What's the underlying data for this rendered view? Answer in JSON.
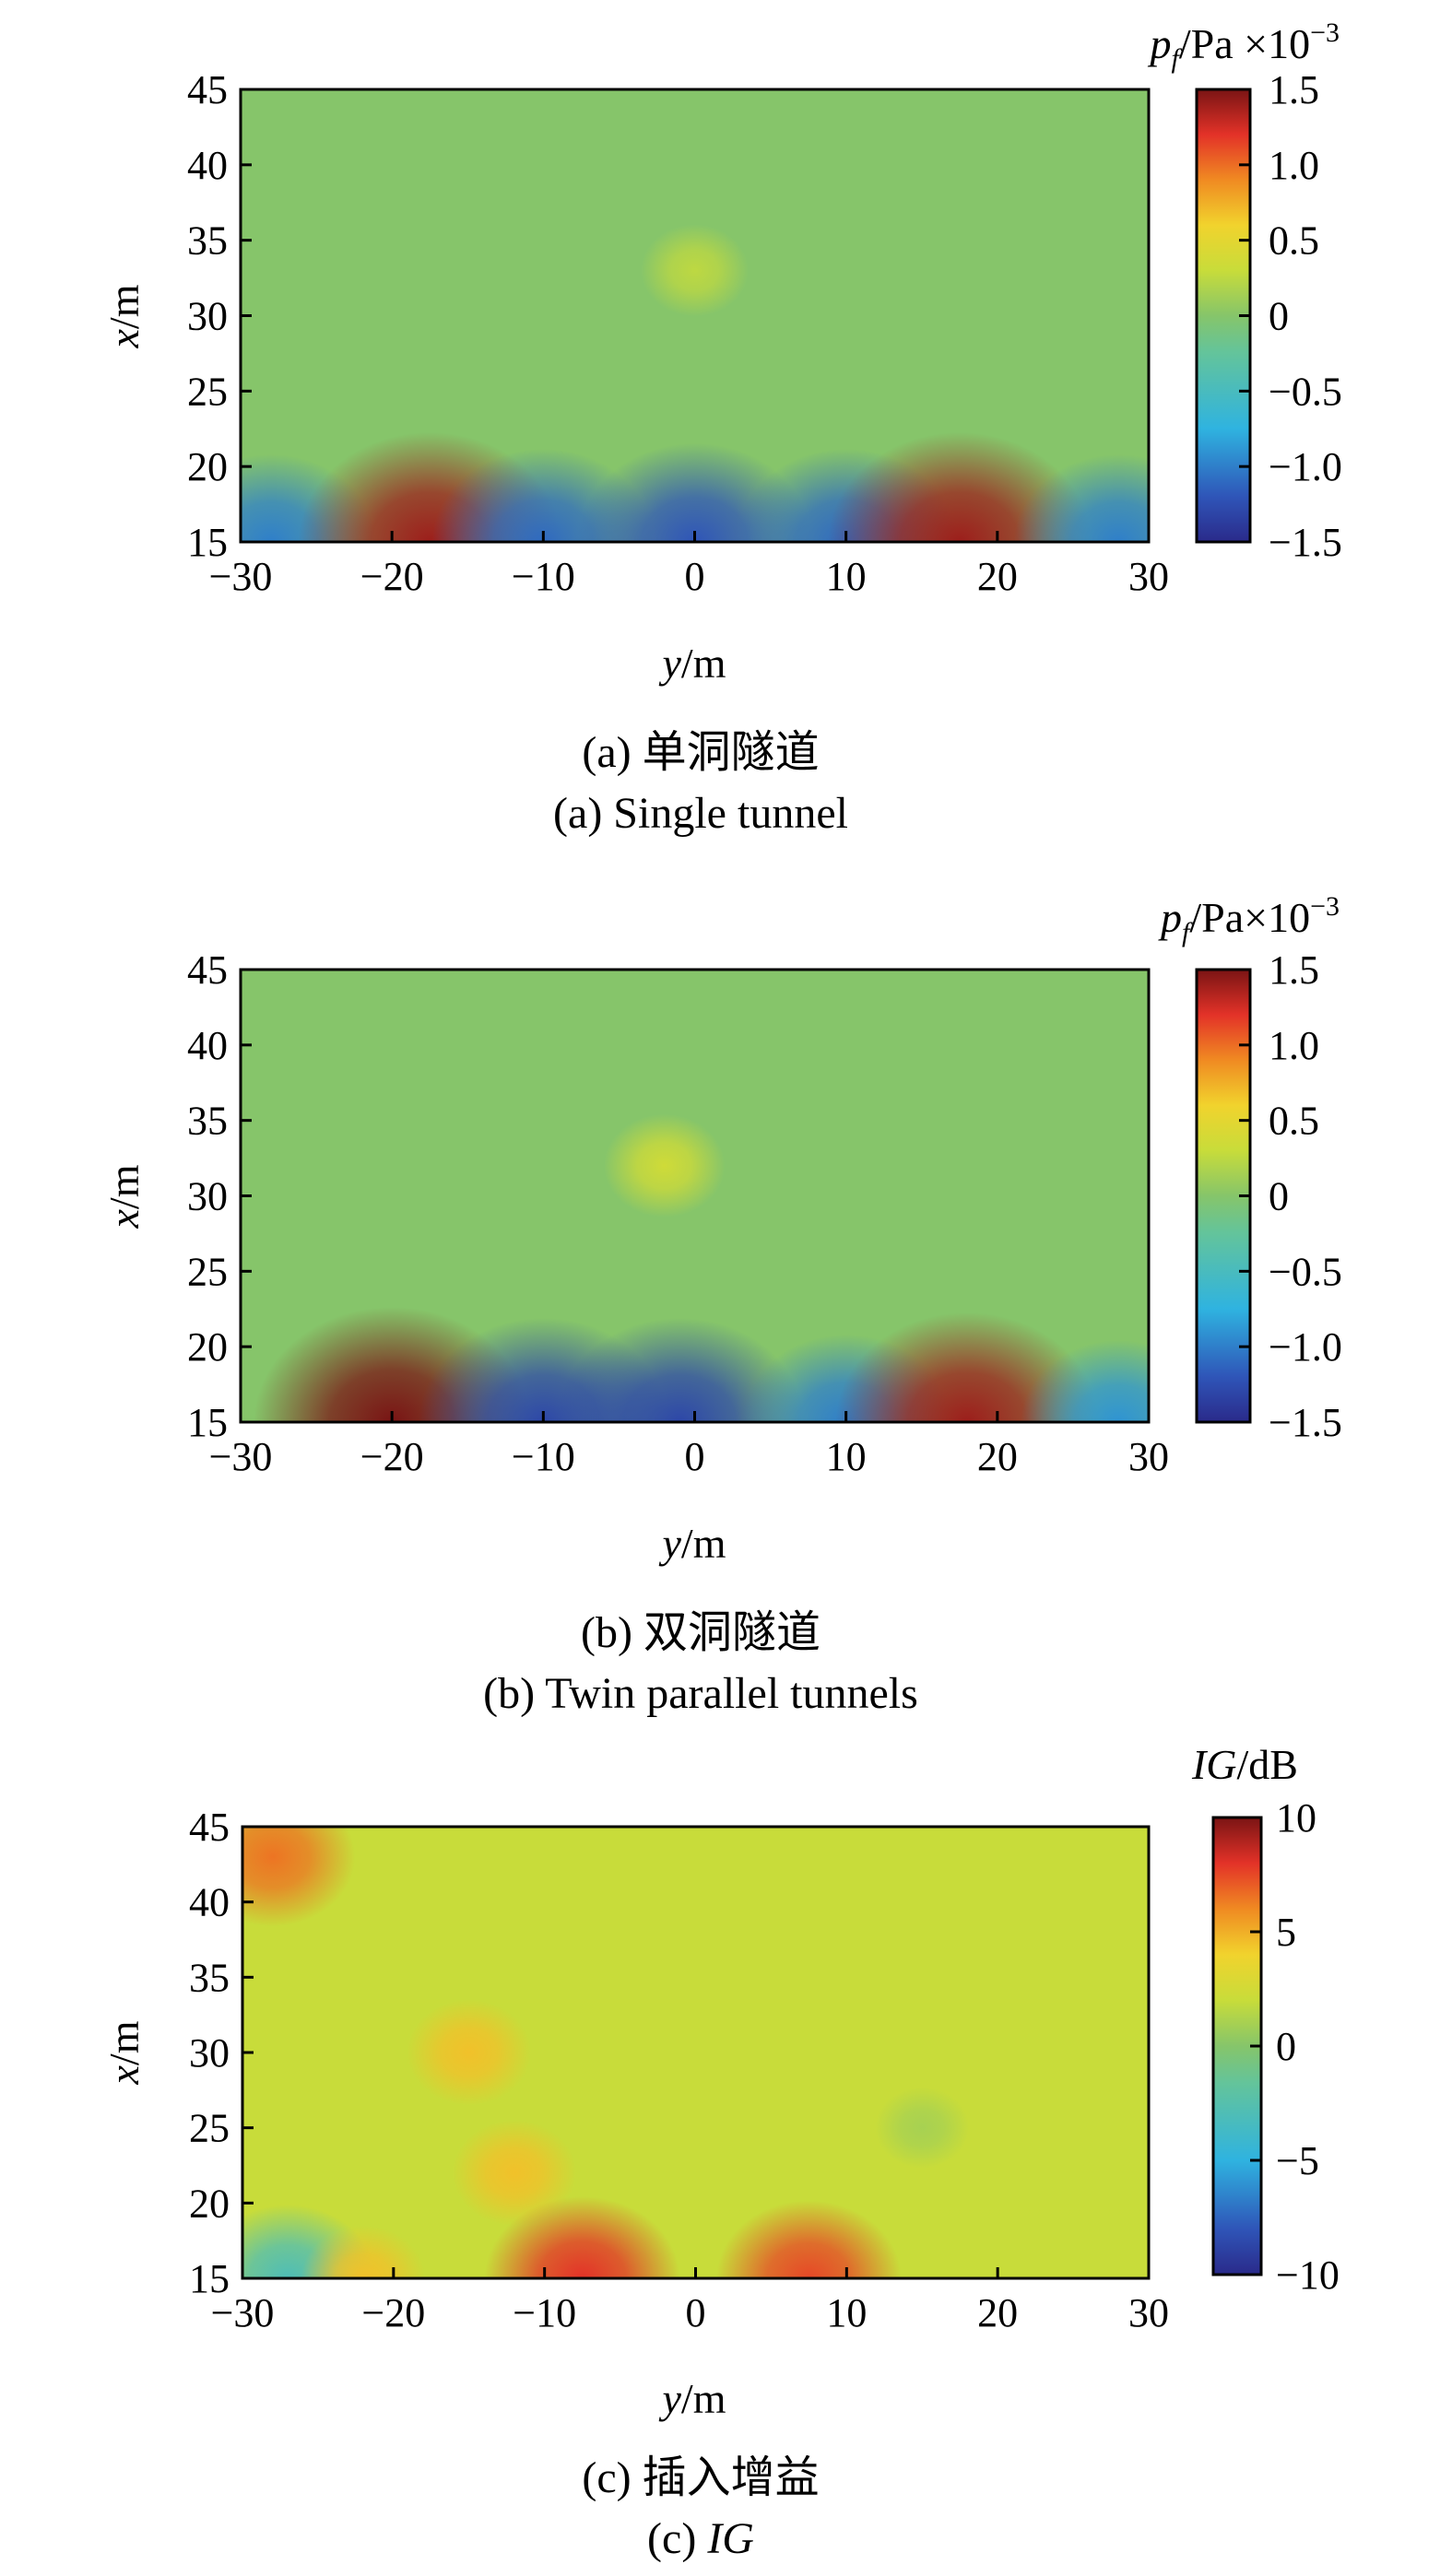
{
  "chart_data": [
    {
      "type": "heatmap",
      "caption_cn": "(a) 单洞隧道",
      "caption_en": "(a) Single tunnel",
      "xlabel_var": "y",
      "xlabel_unit": "/m",
      "ylabel_var": "x",
      "ylabel_unit": "/m",
      "xlim": [
        -30,
        30
      ],
      "ylim": [
        15,
        45
      ],
      "xticks": [
        "−30",
        "−20",
        "−10",
        "0",
        "10",
        "20",
        "30"
      ],
      "yticks": [
        "15",
        "20",
        "25",
        "30",
        "35",
        "40",
        "45"
      ],
      "colorbar": {
        "title_var": "p",
        "title_sub": "f",
        "title_unit": "/Pa ×10",
        "title_exp": "−3",
        "range": [
          -1.5,
          1.5
        ],
        "ticks": [
          "1.5",
          "1.0",
          "0.5",
          "0",
          "−0.5",
          "−1.0",
          "−1.5"
        ]
      },
      "background": 0.0,
      "features": [
        {
          "y": -28,
          "x": 15,
          "value": -1.0
        },
        {
          "y": -17.5,
          "x": 15,
          "value": 1.4
        },
        {
          "y": -10,
          "x": 15,
          "value": -1.1
        },
        {
          "y": 0,
          "x": 15,
          "value": -1.2
        },
        {
          "y": 10,
          "x": 15,
          "value": -1.1
        },
        {
          "y": 17.5,
          "x": 15,
          "value": 1.4
        },
        {
          "y": 28,
          "x": 15,
          "value": -1.0
        },
        {
          "y": 0,
          "x": 33,
          "value": 0.25
        }
      ]
    },
    {
      "type": "heatmap",
      "caption_cn": "(b) 双洞隧道",
      "caption_en": "(b) Twin parallel tunnels",
      "xlabel_var": "y",
      "xlabel_unit": "/m",
      "ylabel_var": "x",
      "ylabel_unit": "/m",
      "xlim": [
        -30,
        30
      ],
      "ylim": [
        15,
        45
      ],
      "xticks": [
        "−30",
        "−20",
        "−10",
        "0",
        "10",
        "20",
        "30"
      ],
      "yticks": [
        "15",
        "20",
        "25",
        "30",
        "35",
        "40",
        "45"
      ],
      "colorbar": {
        "title_var": "p",
        "title_sub": "f",
        "title_unit": "/Pa×10",
        "title_exp": "−3",
        "range": [
          -1.5,
          1.5
        ],
        "ticks": [
          "1.5",
          "1.0",
          "0.5",
          "0",
          "−0.5",
          "−1.0",
          "−1.5"
        ]
      },
      "background": 0.0,
      "features": [
        {
          "y": -20,
          "x": 15,
          "value": 1.5
        },
        {
          "y": -10,
          "x": 15,
          "value": -1.3
        },
        {
          "y": -1,
          "x": 15,
          "value": -1.3
        },
        {
          "y": 10,
          "x": 15,
          "value": -1.0
        },
        {
          "y": 18,
          "x": 15,
          "value": 1.4
        },
        {
          "y": 28,
          "x": 15,
          "value": -0.9
        },
        {
          "y": -2,
          "x": 32,
          "value": 0.35
        }
      ]
    },
    {
      "type": "heatmap",
      "caption_cn": "(c) 插入增益",
      "caption_en_prefix": "(c) ",
      "caption_en_var": "IG",
      "xlabel_var": "y",
      "xlabel_unit": "/m",
      "ylabel_var": "x",
      "ylabel_unit": "/m",
      "xlim": [
        -30,
        30
      ],
      "ylim": [
        15,
        45
      ],
      "xticks": [
        "−30",
        "−20",
        "−10",
        "0",
        "10",
        "20",
        "30"
      ],
      "yticks": [
        "15",
        "20",
        "25",
        "30",
        "35",
        "40",
        "45"
      ],
      "colorbar": {
        "title_var": "IG",
        "title_unit": "/dB",
        "range": [
          -10,
          10
        ],
        "ticks": [
          "10",
          "5",
          "0",
          "−5",
          "−10"
        ]
      },
      "background": 2.0,
      "features": [
        {
          "y": -28,
          "x": 43,
          "value": 6.5
        },
        {
          "y": -15,
          "x": 30,
          "value": 4.5
        },
        {
          "y": -12,
          "x": 22,
          "value": 4.5
        },
        {
          "y": 15,
          "x": 25,
          "value": 1.0
        },
        {
          "y": -7.5,
          "x": 15,
          "value": 8.0
        },
        {
          "y": 7.5,
          "x": 15,
          "value": 7.5
        },
        {
          "y": -27,
          "x": 15,
          "value": -3.0
        },
        {
          "y": -22,
          "x": 15,
          "value": 4.5
        }
      ]
    }
  ]
}
